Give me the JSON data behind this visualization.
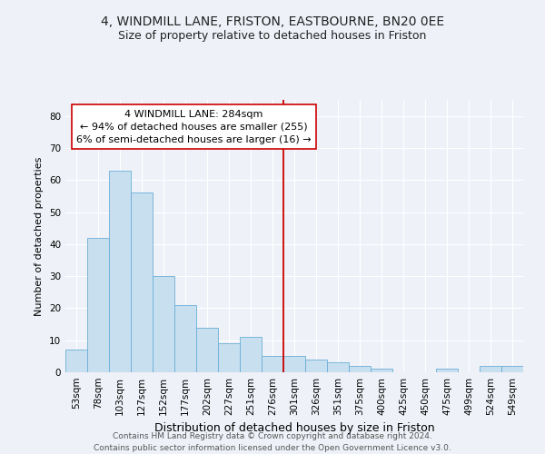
{
  "title1": "4, WINDMILL LANE, FRISTON, EASTBOURNE, BN20 0EE",
  "title2": "Size of property relative to detached houses in Friston",
  "xlabel": "Distribution of detached houses by size in Friston",
  "ylabel": "Number of detached properties",
  "bin_labels": [
    "53sqm",
    "78sqm",
    "103sqm",
    "127sqm",
    "152sqm",
    "177sqm",
    "202sqm",
    "227sqm",
    "251sqm",
    "276sqm",
    "301sqm",
    "326sqm",
    "351sqm",
    "375sqm",
    "400sqm",
    "425sqm",
    "450sqm",
    "475sqm",
    "499sqm",
    "524sqm",
    "549sqm"
  ],
  "bar_heights": [
    7,
    42,
    63,
    56,
    30,
    21,
    14,
    9,
    11,
    5,
    5,
    4,
    3,
    2,
    1,
    0,
    0,
    1,
    0,
    2,
    2
  ],
  "bar_color": "#c8dff0",
  "bar_edge_color": "#6aaed6",
  "vline_x": 9.5,
  "vline_color": "#cc0000",
  "annotation_title": "4 WINDMILL LANE: 284sqm",
  "annotation_line1": "← 94% of detached houses are smaller (255)",
  "annotation_line2": "6% of semi-detached houses are larger (16) →",
  "annotation_box_color": "#ffffff",
  "annotation_box_edge": "#cc0000",
  "footer1": "Contains HM Land Registry data © Crown copyright and database right 2024.",
  "footer2": "Contains public sector information licensed under the Open Government Licence v3.0.",
  "ylim": [
    0,
    85
  ],
  "yticks": [
    0,
    10,
    20,
    30,
    40,
    50,
    60,
    70,
    80
  ],
  "background_color": "#eef2f8",
  "grid_color": "#ffffff",
  "title1_fontsize": 10,
  "title2_fontsize": 9,
  "ylabel_fontsize": 8,
  "xlabel_fontsize": 9,
  "tick_fontsize": 7.5,
  "footer_fontsize": 6.5
}
